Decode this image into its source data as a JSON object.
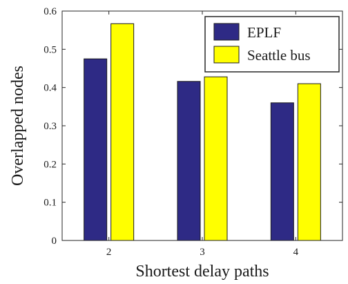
{
  "chart_data": {
    "type": "bar",
    "xlabel": "Shortest delay paths",
    "ylabel": "Overlapped nodes",
    "categories": [
      "2",
      "3",
      "4"
    ],
    "series": [
      {
        "name": "EPLF",
        "color": "#2e2a85",
        "values": [
          0.475,
          0.416,
          0.36
        ]
      },
      {
        "name": "Seattle bus",
        "color": "#ffff00",
        "values": [
          0.567,
          0.428,
          0.41
        ]
      }
    ],
    "ylim": [
      0,
      0.6
    ],
    "yticks": [
      "0",
      "0.1",
      "0.2",
      "0.3",
      "0.4",
      "0.5",
      "0.6"
    ],
    "legend_position": "top-right",
    "grid": false
  }
}
